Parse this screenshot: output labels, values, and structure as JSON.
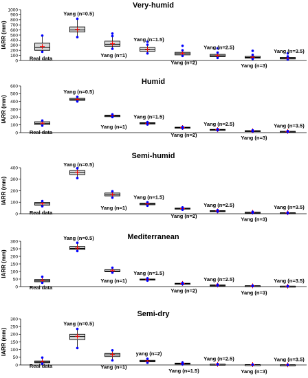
{
  "chart_data": [
    {
      "type": "boxplot",
      "title": "Very-humid",
      "ylabel": "IARR (mm)",
      "ylim": [
        0,
        1000
      ],
      "yticks": [
        0,
        100,
        200,
        300,
        400,
        500,
        600,
        700,
        800,
        900,
        1000
      ],
      "categories": [
        "Real data",
        "Yang (n=0.5)",
        "Yang (n=1)",
        "Yang (n=1.5)",
        "Yang (n=2)",
        "Yang (n=2.5)",
        "Yang (n=3)",
        "Yang (n=3.5)"
      ],
      "boxes": [
        {
          "min": 170,
          "q1": 200,
          "median": 255,
          "mean": 275,
          "q3": 340,
          "max": 490,
          "outliers": []
        },
        {
          "min": 460,
          "q1": 560,
          "median": 600,
          "mean": 610,
          "q3": 660,
          "max": 820,
          "outliers": []
        },
        {
          "min": 230,
          "q1": 280,
          "median": 320,
          "mean": 330,
          "q3": 380,
          "max": 480,
          "outliers": [
            530
          ]
        },
        {
          "min": 140,
          "q1": 180,
          "median": 210,
          "mean": 220,
          "q3": 255,
          "max": 310,
          "outliers": [
            370
          ]
        },
        {
          "min": 90,
          "q1": 110,
          "median": 135,
          "mean": 140,
          "q3": 160,
          "max": 200,
          "outliers": [
            290
          ]
        },
        {
          "min": 50,
          "q1": 75,
          "median": 95,
          "mean": 100,
          "q3": 120,
          "max": 155,
          "outliers": [
            240
          ]
        },
        {
          "min": 30,
          "q1": 45,
          "median": 60,
          "mean": 65,
          "q3": 80,
          "max": 110,
          "outliers": [
            190
          ]
        },
        {
          "min": 20,
          "q1": 30,
          "median": 40,
          "mean": 45,
          "q3": 60,
          "max": 80,
          "outliers": [
            140
          ]
        }
      ]
    },
    {
      "type": "boxplot",
      "title": "Humid",
      "ylabel": "IARR (mm)",
      "ylim": [
        0,
        600
      ],
      "yticks": [
        0,
        100,
        200,
        300,
        400,
        500,
        600
      ],
      "categories": [
        "Real data",
        "Yang (n=0.5)",
        "Yang (n=1)",
        "Yang (n=1.5)",
        "Yang (n=2)",
        "Yang (n=2.5)",
        "Yang (n=3)",
        "Yang (n=3.5)"
      ],
      "boxes": [
        {
          "min": 90,
          "q1": 105,
          "median": 120,
          "mean": 122,
          "q3": 140,
          "max": 155,
          "outliers": []
        },
        {
          "min": 400,
          "q1": 415,
          "median": 425,
          "mean": 428,
          "q3": 440,
          "max": 460,
          "outliers": []
        },
        {
          "min": 200,
          "q1": 205,
          "median": 215,
          "mean": 216,
          "q3": 225,
          "max": 235,
          "outliers": []
        },
        {
          "min": 105,
          "q1": 110,
          "median": 118,
          "mean": 120,
          "q3": 128,
          "max": 135,
          "outliers": []
        },
        {
          "min": 55,
          "q1": 60,
          "median": 65,
          "mean": 66,
          "q3": 70,
          "max": 75,
          "outliers": []
        },
        {
          "min": 30,
          "q1": 35,
          "median": 38,
          "mean": 39,
          "q3": 42,
          "max": 46,
          "outliers": []
        },
        {
          "min": 18,
          "q1": 20,
          "median": 23,
          "mean": 24,
          "q3": 26,
          "max": 30,
          "outliers": []
        },
        {
          "min": 10,
          "q1": 12,
          "median": 14,
          "mean": 15,
          "q3": 17,
          "max": 20,
          "outliers": []
        }
      ]
    },
    {
      "type": "boxplot",
      "title": "Semi-humid",
      "ylabel": "IARR (mm)",
      "ylim": [
        0,
        400
      ],
      "yticks": [
        0,
        100,
        200,
        300,
        400
      ],
      "categories": [
        "Real data",
        "Yang (n=0.5)",
        "Yang (n=1)",
        "Yang (n=1.5)",
        "Yang (n=2)",
        "Yang (n=2.5)",
        "Yang (n=3)",
        "Yang (n=3.5)"
      ],
      "boxes": [
        {
          "min": 65,
          "q1": 75,
          "median": 85,
          "mean": 87,
          "q3": 98,
          "max": 110,
          "outliers": []
        },
        {
          "min": 310,
          "q1": 340,
          "median": 360,
          "mean": 362,
          "q3": 375,
          "max": 395,
          "outliers": []
        },
        {
          "min": 140,
          "q1": 155,
          "median": 165,
          "mean": 168,
          "q3": 180,
          "max": 195,
          "outliers": []
        },
        {
          "min": 70,
          "q1": 78,
          "median": 85,
          "mean": 86,
          "q3": 92,
          "max": 100,
          "outliers": []
        },
        {
          "min": 35,
          "q1": 40,
          "median": 44,
          "mean": 45,
          "q3": 49,
          "max": 55,
          "outliers": []
        },
        {
          "min": 18,
          "q1": 21,
          "median": 24,
          "mean": 25,
          "q3": 27,
          "max": 31,
          "outliers": []
        },
        {
          "min": 8,
          "q1": 10,
          "median": 12,
          "mean": 13,
          "q3": 14,
          "max": 17,
          "outliers": []
        },
        {
          "min": 4,
          "q1": 6,
          "median": 7,
          "mean": 8,
          "q3": 9,
          "max": 11,
          "outliers": []
        }
      ]
    },
    {
      "type": "boxplot",
      "title": "Mediterranean",
      "ylabel": "IARR (mm)",
      "ylim": [
        0,
        300
      ],
      "yticks": [
        0,
        50,
        100,
        150,
        200,
        250,
        300
      ],
      "categories": [
        "Real data",
        "Yang (n=0.5)",
        "Yang (n=1)",
        "Yang (n=1.5)",
        "Yang (n=2)",
        "Yang (n=2.5)",
        "Yang (n=3)",
        "Yang (n=3.5)"
      ],
      "boxes": [
        {
          "min": 25,
          "q1": 32,
          "median": 38,
          "mean": 40,
          "q3": 47,
          "max": 65,
          "outliers": []
        },
        {
          "min": 235,
          "q1": 245,
          "median": 252,
          "mean": 255,
          "q3": 265,
          "max": 290,
          "outliers": []
        },
        {
          "min": 92,
          "q1": 98,
          "median": 103,
          "mean": 105,
          "q3": 112,
          "max": 125,
          "outliers": []
        },
        {
          "min": 40,
          "q1": 43,
          "median": 46,
          "mean": 47,
          "q3": 50,
          "max": 55,
          "outliers": []
        },
        {
          "min": 16,
          "q1": 18,
          "median": 20,
          "mean": 21,
          "q3": 22,
          "max": 25,
          "outliers": []
        },
        {
          "min": 7,
          "q1": 8,
          "median": 9,
          "mean": 10,
          "q3": 11,
          "max": 13,
          "outliers": []
        },
        {
          "min": 3,
          "q1": 4,
          "median": 5,
          "mean": 5,
          "q3": 6,
          "max": 7,
          "outliers": []
        },
        {
          "min": 1,
          "q1": 2,
          "median": 3,
          "mean": 3,
          "q3": 3,
          "max": 4,
          "outliers": []
        }
      ]
    },
    {
      "type": "boxplot",
      "title": "Semi-dry",
      "ylabel": "IARR (mm)",
      "ylim": [
        0,
        300
      ],
      "yticks": [
        0,
        50,
        100,
        150,
        200,
        250,
        300
      ],
      "categories": [
        "Real data",
        "Yang (n=0.5)",
        "Yang (n=1)",
        "yang (n=2)",
        "Yang (n=1.5)",
        "Yang (n=2.5)",
        "Yang (n=3)",
        "Yang (n=3.5)"
      ],
      "boxes": [
        {
          "min": 8,
          "q1": 14,
          "median": 19,
          "mean": 21,
          "q3": 26,
          "max": 48,
          "outliers": []
        },
        {
          "min": 110,
          "q1": 165,
          "median": 185,
          "mean": 187,
          "q3": 200,
          "max": 235,
          "outliers": []
        },
        {
          "min": 30,
          "q1": 55,
          "median": 65,
          "mean": 68,
          "q3": 75,
          "max": 95,
          "outliers": []
        },
        {
          "min": 14,
          "q1": 20,
          "median": 25,
          "mean": 26,
          "q3": 30,
          "max": 40,
          "outliers": []
        },
        {
          "min": 4,
          "q1": 7,
          "median": 9,
          "mean": 10,
          "q3": 12,
          "max": 16,
          "outliers": []
        },
        {
          "min": 2,
          "q1": 3,
          "median": 4,
          "mean": 4,
          "q3": 5,
          "max": 6,
          "outliers": []
        },
        {
          "min": 1,
          "q1": 1,
          "median": 2,
          "mean": 2,
          "q3": 2,
          "max": 3,
          "outliers": []
        },
        {
          "min": 0,
          "q1": 1,
          "median": 1,
          "mean": 1,
          "q3": 1,
          "max": 2,
          "outliers": []
        }
      ]
    }
  ],
  "colors": {
    "box_fill": "#d9d9d9",
    "median": "#000000",
    "mean": "#ff0000",
    "whisker_point": "#0000ff",
    "axis": "#000000"
  }
}
